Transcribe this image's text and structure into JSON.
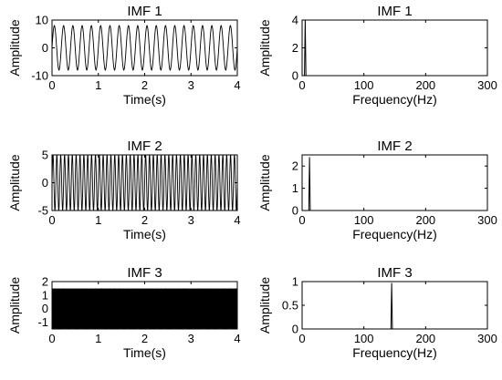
{
  "chart_data": [
    {
      "type": "line",
      "title": "IMF 1",
      "xlabel": "Time(s)",
      "ylabel": "Amplitude",
      "xlim": [
        0,
        4
      ],
      "ylim": [
        -10,
        10
      ],
      "xticks": [
        "0",
        "1",
        "2",
        "3",
        "4"
      ],
      "yticks": [
        "-10",
        "0",
        "10"
      ],
      "signal": {
        "form": "sine",
        "amplitude": 8,
        "frequency_hz": 5,
        "duration_s": 4
      },
      "grid": false,
      "legend": "none"
    },
    {
      "type": "line",
      "title": "IMF 1",
      "xlabel": "Frequency(Hz)",
      "ylabel": "Amplitude",
      "xlim": [
        0,
        300
      ],
      "ylim": [
        0,
        4
      ],
      "xticks": [
        "0",
        "100",
        "200",
        "300"
      ],
      "yticks": [
        "0",
        "2",
        "4"
      ],
      "spectrum": {
        "peak_frequency_hz": 5,
        "peak_amplitude": 4,
        "max_frequency_hz": 250
      },
      "grid": false,
      "legend": "none"
    },
    {
      "type": "line",
      "title": "IMF 2",
      "xlabel": "Time(s)",
      "ylabel": "Amplitude",
      "xlim": [
        0,
        4
      ],
      "ylim": [
        -5,
        5
      ],
      "xticks": [
        "0",
        "1",
        "2",
        "3",
        "4"
      ],
      "yticks": [
        "-5",
        "0",
        "5"
      ],
      "signal": {
        "form": "sine",
        "amplitude": 5,
        "frequency_hz": 12,
        "duration_s": 4
      },
      "grid": false,
      "legend": "none"
    },
    {
      "type": "line",
      "title": "IMF 2",
      "xlabel": "Frequency(Hz)",
      "ylabel": "Amplitude",
      "xlim": [
        0,
        300
      ],
      "ylim": [
        0,
        2.5
      ],
      "xticks": [
        "0",
        "100",
        "200",
        "300"
      ],
      "yticks": [
        "0",
        "1",
        "2"
      ],
      "spectrum": {
        "peak_frequency_hz": 12,
        "peak_amplitude": 2.4,
        "max_frequency_hz": 250
      },
      "grid": false,
      "legend": "none"
    },
    {
      "type": "line",
      "title": "IMF 3",
      "xlabel": "Time(s)",
      "ylabel": "Amplitude",
      "xlim": [
        0,
        4
      ],
      "ylim": [
        -1.5,
        2
      ],
      "xticks": [
        "0",
        "1",
        "2",
        "3",
        "4"
      ],
      "yticks": [
        "-1",
        "0",
        "1",
        "2"
      ],
      "signal": {
        "form": "sine",
        "amplitude": 1.5,
        "frequency_hz": 145,
        "duration_s": 4
      },
      "grid": false,
      "legend": "none"
    },
    {
      "type": "line",
      "title": "IMF 3",
      "xlabel": "Frequency(Hz)",
      "ylabel": "Amplitude",
      "xlim": [
        0,
        300
      ],
      "ylim": [
        0,
        1
      ],
      "xticks": [
        "0",
        "100",
        "200",
        "300"
      ],
      "yticks": [
        "0",
        "0.5",
        "1"
      ],
      "spectrum": {
        "peak_frequency_hz": 145,
        "peak_amplitude": 0.97,
        "max_frequency_hz": 250
      },
      "grid": false,
      "legend": "none"
    }
  ],
  "colors": {
    "line": "#000000",
    "axes": "#000000",
    "background": "#ffffff"
  }
}
